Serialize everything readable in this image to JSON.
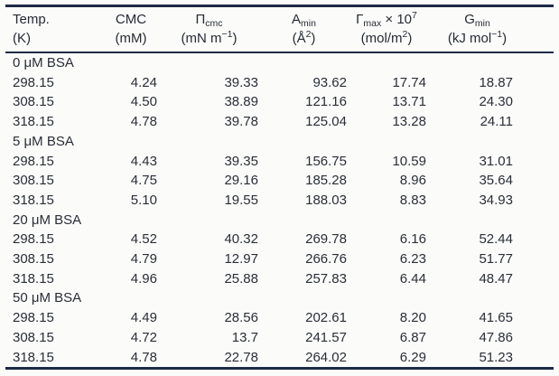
{
  "table": {
    "columns": [
      {
        "id": "temp",
        "line1": [
          {
            "t": "Temp.",
            "m": "n"
          }
        ],
        "line2": [
          {
            "t": "(K)",
            "m": "n"
          }
        ]
      },
      {
        "id": "cmc",
        "line1": [
          {
            "t": "CMC",
            "m": "n"
          }
        ],
        "line2": [
          {
            "t": "(mM)",
            "m": "n"
          }
        ]
      },
      {
        "id": "pi-cmc",
        "line1": [
          {
            "t": "Π",
            "m": "n"
          },
          {
            "t": "cmc",
            "m": "sub"
          }
        ],
        "line2": [
          {
            "t": "(mN m",
            "m": "n"
          },
          {
            "t": "−1",
            "m": "sup"
          },
          {
            "t": ")",
            "m": "n"
          }
        ]
      },
      {
        "id": "a-min",
        "line1": [
          {
            "t": "A",
            "m": "n"
          },
          {
            "t": "min",
            "m": "sub"
          }
        ],
        "line2": [
          {
            "t": "(Å",
            "m": "n"
          },
          {
            "t": "2",
            "m": "sup"
          },
          {
            "t": ")",
            "m": "n"
          }
        ]
      },
      {
        "id": "gamma-max",
        "line1": [
          {
            "t": "Γ",
            "m": "n"
          },
          {
            "t": "max",
            "m": "sub"
          },
          {
            "t": " × 10",
            "m": "n"
          },
          {
            "t": "7",
            "m": "sup"
          }
        ],
        "line2": [
          {
            "t": "(mol/m",
            "m": "n"
          },
          {
            "t": "2",
            "m": "sup"
          },
          {
            "t": ")",
            "m": "n"
          }
        ]
      },
      {
        "id": "g-min",
        "line1": [
          {
            "t": "G",
            "m": "n"
          },
          {
            "t": "min",
            "m": "sub"
          }
        ],
        "line2": [
          {
            "t": "(kJ mol",
            "m": "n"
          },
          {
            "t": "−1",
            "m": "sup"
          },
          {
            "t": ")",
            "m": "n"
          }
        ]
      }
    ],
    "sections": [
      {
        "label": "0 μM BSA",
        "rows": [
          [
            "298.15",
            "4.24",
            "39.33",
            "93.62",
            "17.74",
            "18.87"
          ],
          [
            "308.15",
            "4.50",
            "38.89",
            "121.16",
            "13.71",
            "24.30"
          ],
          [
            "318.15",
            "4.78",
            "39.78",
            "125.04",
            "13.28",
            "24.11"
          ]
        ]
      },
      {
        "label": "5 μM BSA",
        "rows": [
          [
            "298.15",
            "4.43",
            "39.35",
            "156.75",
            "10.59",
            "31.01"
          ],
          [
            "308.15",
            "4.75",
            "29.16",
            "185.28",
            "8.96",
            "35.64"
          ],
          [
            "318.15",
            "5.10",
            "19.55",
            "188.03",
            "8.83",
            "34.93"
          ]
        ]
      },
      {
        "label": "20 μM BSA",
        "rows": [
          [
            "298.15",
            "4.52",
            "40.32",
            "269.78",
            "6.16",
            "52.44"
          ],
          [
            "308.15",
            "4.79",
            "12.97",
            "266.76",
            "6.23",
            "51.77"
          ],
          [
            "318.15",
            "4.96",
            "25.88",
            "257.83",
            "6.44",
            "48.47"
          ]
        ]
      },
      {
        "label": "50 μM BSA",
        "rows": [
          [
            "298.15",
            "4.49",
            "28.56",
            "202.61",
            "8.20",
            "41.65"
          ],
          [
            "308.15",
            "4.72",
            "13.7",
            "241.57",
            "6.87",
            "47.86"
          ],
          [
            "318.15",
            "4.78",
            "22.78",
            "264.02",
            "6.29",
            "51.23"
          ]
        ]
      }
    ],
    "rule_color": "#1e2a45",
    "text_color": "#2a2e36",
    "background_color": "#fbfbfa"
  }
}
